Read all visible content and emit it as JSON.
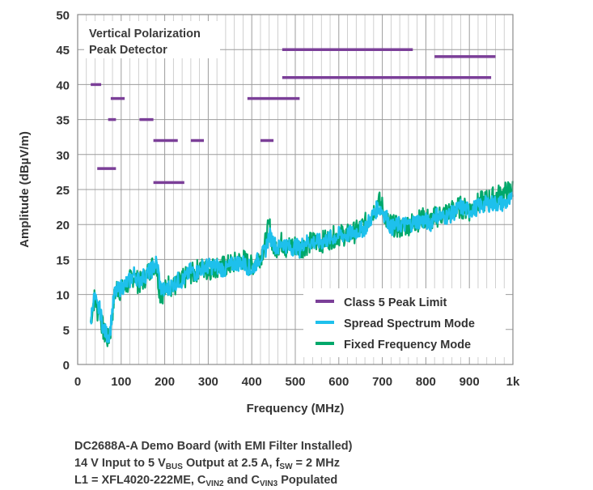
{
  "chart_data": {
    "type": "line",
    "annotation": [
      "Vertical Polarization",
      "Peak Detector"
    ],
    "xlabel": "Frequency (MHz)",
    "ylabel": "Amplitude (dBµV/m)",
    "xlim": [
      0,
      1000
    ],
    "ylim": [
      0,
      50
    ],
    "x_ticks": [
      0,
      100,
      200,
      300,
      400,
      500,
      600,
      700,
      800,
      900,
      1000
    ],
    "x_tick_labels": [
      "0",
      "100",
      "200",
      "300",
      "400",
      "500",
      "600",
      "700",
      "800",
      "900",
      "1k"
    ],
    "y_ticks": [
      0,
      5,
      10,
      15,
      20,
      25,
      30,
      35,
      40,
      45,
      50
    ],
    "grid": true,
    "legend_position": "bottom-right",
    "colors": {
      "limit": "#7b3f98",
      "spread": "#1ec0ec",
      "fixed": "#00a86b"
    },
    "series": [
      {
        "name": "Class 5 Peak Limit",
        "kind": "segments",
        "segments": [
          {
            "x0": 30,
            "x1": 54,
            "y": 40
          },
          {
            "x0": 76,
            "x1": 108,
            "y": 38
          },
          {
            "x0": 70,
            "x1": 88,
            "y": 35
          },
          {
            "x0": 142,
            "x1": 174,
            "y": 35
          },
          {
            "x0": 174,
            "x1": 230,
            "y": 32
          },
          {
            "x0": 260,
            "x1": 290,
            "y": 32
          },
          {
            "x0": 420,
            "x1": 450,
            "y": 32
          },
          {
            "x0": 390,
            "x1": 510,
            "y": 38
          },
          {
            "x0": 470,
            "x1": 770,
            "y": 45
          },
          {
            "x0": 470,
            "x1": 950,
            "y": 41
          },
          {
            "x0": 820,
            "x1": 960,
            "y": 44
          },
          {
            "x0": 45,
            "x1": 88,
            "y": 28
          },
          {
            "x0": 174,
            "x1": 245,
            "y": 26
          }
        ]
      },
      {
        "name": "Fixed Frequency Mode",
        "kind": "trace",
        "x": [
          30,
          35,
          40,
          45,
          50,
          55,
          60,
          65,
          70,
          75,
          80,
          85,
          90,
          100,
          110,
          120,
          130,
          140,
          150,
          160,
          170,
          180,
          185,
          190,
          200,
          210,
          220,
          230,
          240,
          250,
          260,
          270,
          280,
          290,
          300,
          320,
          340,
          360,
          380,
          400,
          410,
          420,
          430,
          440,
          450,
          460,
          470,
          480,
          490,
          500,
          510,
          520,
          540,
          560,
          580,
          600,
          620,
          640,
          660,
          680,
          690,
          700,
          710,
          720,
          740,
          760,
          780,
          800,
          810,
          820,
          840,
          860,
          880,
          900,
          920,
          940,
          960,
          980,
          1000
        ],
        "y": [
          6,
          8.5,
          9.8,
          7.5,
          8.5,
          6,
          4.5,
          4,
          3.5,
          4.5,
          7.5,
          10,
          11,
          10.5,
          11,
          12,
          12.8,
          11.5,
          12,
          13,
          14,
          14.5,
          12,
          10,
          10.5,
          11.5,
          11,
          11.5,
          12,
          12.5,
          13,
          13,
          14,
          13.5,
          13.5,
          14,
          14,
          14.5,
          15,
          14,
          15,
          15.5,
          17,
          20,
          16.5,
          17,
          17.5,
          16.5,
          17,
          17,
          16.5,
          17,
          17.5,
          17.5,
          18,
          18.5,
          18.5,
          19,
          20,
          22,
          23.5,
          22.5,
          20.5,
          20,
          19.5,
          20,
          20.5,
          21,
          20.5,
          21,
          21.5,
          22,
          22.5,
          22,
          23,
          23.5,
          24,
          24.5,
          25
        ]
      },
      {
        "name": "Spread Spectrum Mode",
        "kind": "trace",
        "x": [
          30,
          35,
          40,
          45,
          50,
          55,
          60,
          65,
          70,
          75,
          80,
          85,
          90,
          100,
          110,
          120,
          130,
          140,
          150,
          160,
          170,
          180,
          185,
          190,
          200,
          210,
          220,
          230,
          240,
          250,
          260,
          270,
          280,
          290,
          300,
          320,
          340,
          360,
          380,
          400,
          410,
          420,
          430,
          440,
          450,
          460,
          470,
          480,
          490,
          500,
          510,
          520,
          540,
          560,
          580,
          600,
          620,
          640,
          660,
          680,
          690,
          700,
          710,
          720,
          740,
          760,
          780,
          800,
          810,
          820,
          840,
          860,
          880,
          900,
          920,
          940,
          960,
          980,
          1000
        ],
        "y": [
          6,
          9,
          9.5,
          8,
          8,
          6.5,
          5,
          4.5,
          4,
          5,
          8,
          10,
          10.5,
          11,
          11.5,
          12,
          13,
          12,
          12.5,
          13,
          13.5,
          14.5,
          13.5,
          11,
          10.5,
          11,
          11.5,
          12,
          12,
          12.5,
          13.5,
          13,
          13.5,
          14,
          14,
          14,
          13.5,
          14.5,
          14.5,
          13.5,
          14.5,
          15.5,
          16,
          18.5,
          17.5,
          16.5,
          17.5,
          17,
          16.5,
          17,
          16.5,
          17.5,
          17.5,
          17.5,
          18,
          18.5,
          18.5,
          19,
          19.5,
          21.5,
          22.5,
          22,
          21,
          19.5,
          20,
          20,
          20.5,
          20.5,
          20,
          21.5,
          21,
          21.5,
          22.5,
          22,
          22.5,
          23,
          23,
          23,
          23.5
        ]
      }
    ]
  },
  "caption": {
    "line1": "DC2688A-A Demo Board (with EMI Filter Installed)",
    "line2_a": "14 V Input to 5 V",
    "line2_sub1": "BUS",
    "line2_b": " Output at 2.5 A, f",
    "line2_sub2": "SW",
    "line2_c": " = 2 MHz",
    "line3_a": "L1 = XFL4020-222ME, C",
    "line3_sub1": "VIN2",
    "line3_b": " and C",
    "line3_sub2": "VIN3",
    "line3_c": " Populated"
  }
}
